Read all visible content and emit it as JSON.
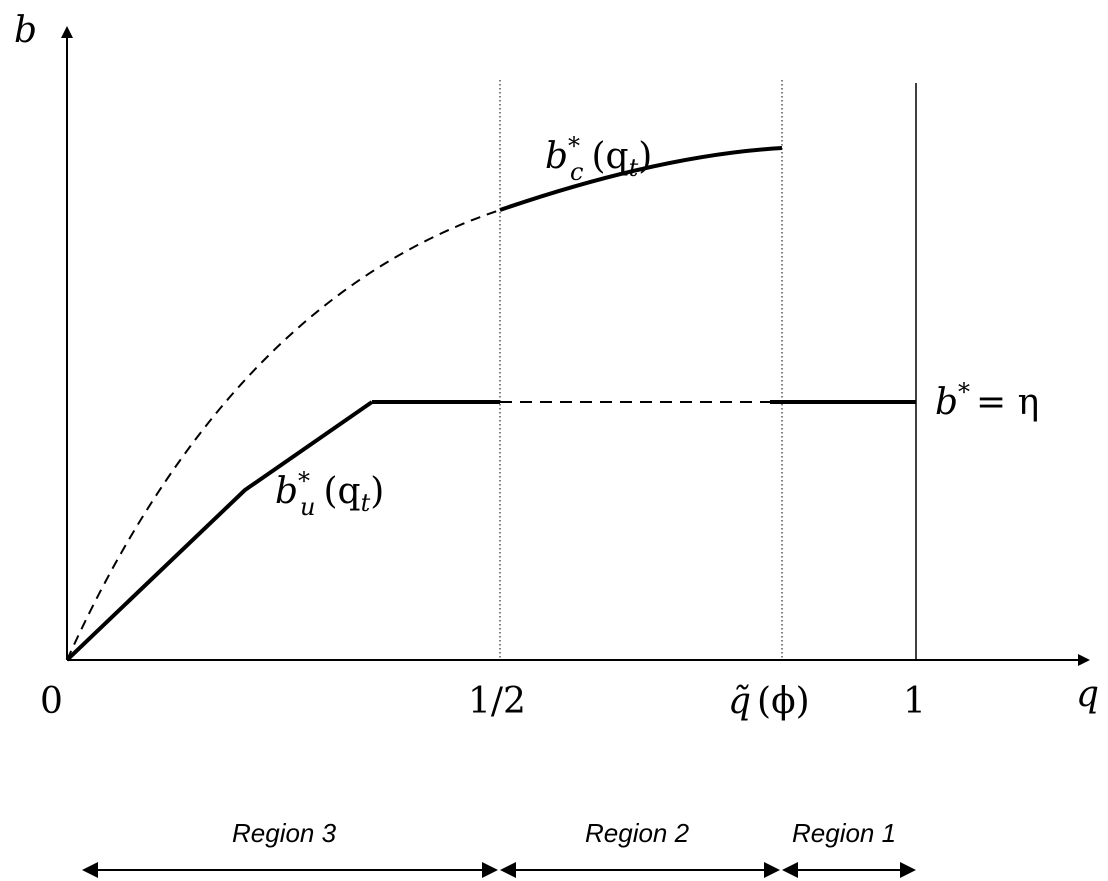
{
  "axes": {
    "y_label": "b",
    "x_label": "q",
    "origin_label": "0"
  },
  "x_ticks": {
    "half": "1/2",
    "qtilde_base": "q̃",
    "qtilde_arg": "(ϕ)",
    "one": "1"
  },
  "curves": {
    "constrained": {
      "base": "b",
      "sup": "*",
      "sub": "c",
      "arg": "(q",
      "arg_sub": "t",
      "arg_close": ")"
    },
    "unconstrained": {
      "base": "b",
      "sup": "*",
      "sub": "u",
      "arg": "(q",
      "arg_sub": "t",
      "arg_close": ")"
    },
    "eta": {
      "base": "b",
      "sup": "*",
      "rest": "= η"
    }
  },
  "regions": {
    "region3": "Region 3",
    "region2": "Region 2",
    "region1": "Region 1"
  }
}
